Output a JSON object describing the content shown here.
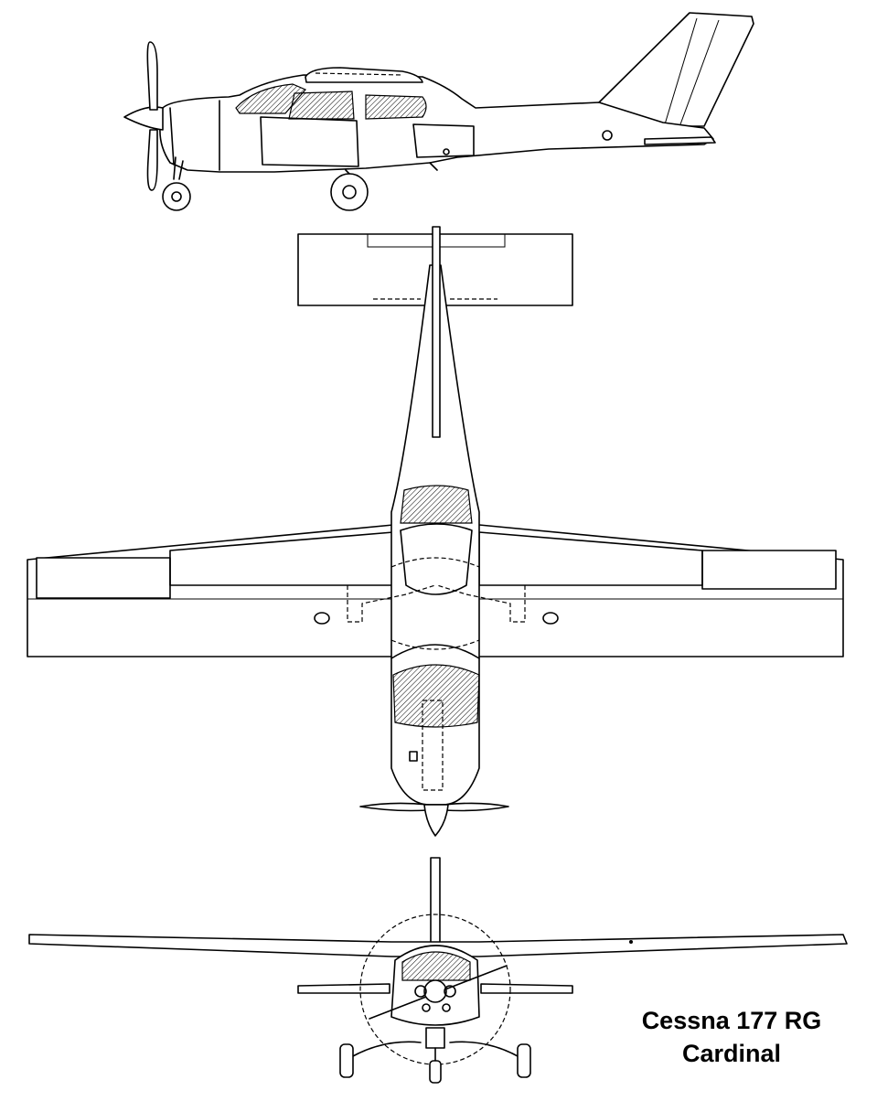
{
  "caption": {
    "line1": "Cessna 177 RG",
    "line2": "Cardinal"
  },
  "views": [
    "side",
    "top",
    "front"
  ]
}
